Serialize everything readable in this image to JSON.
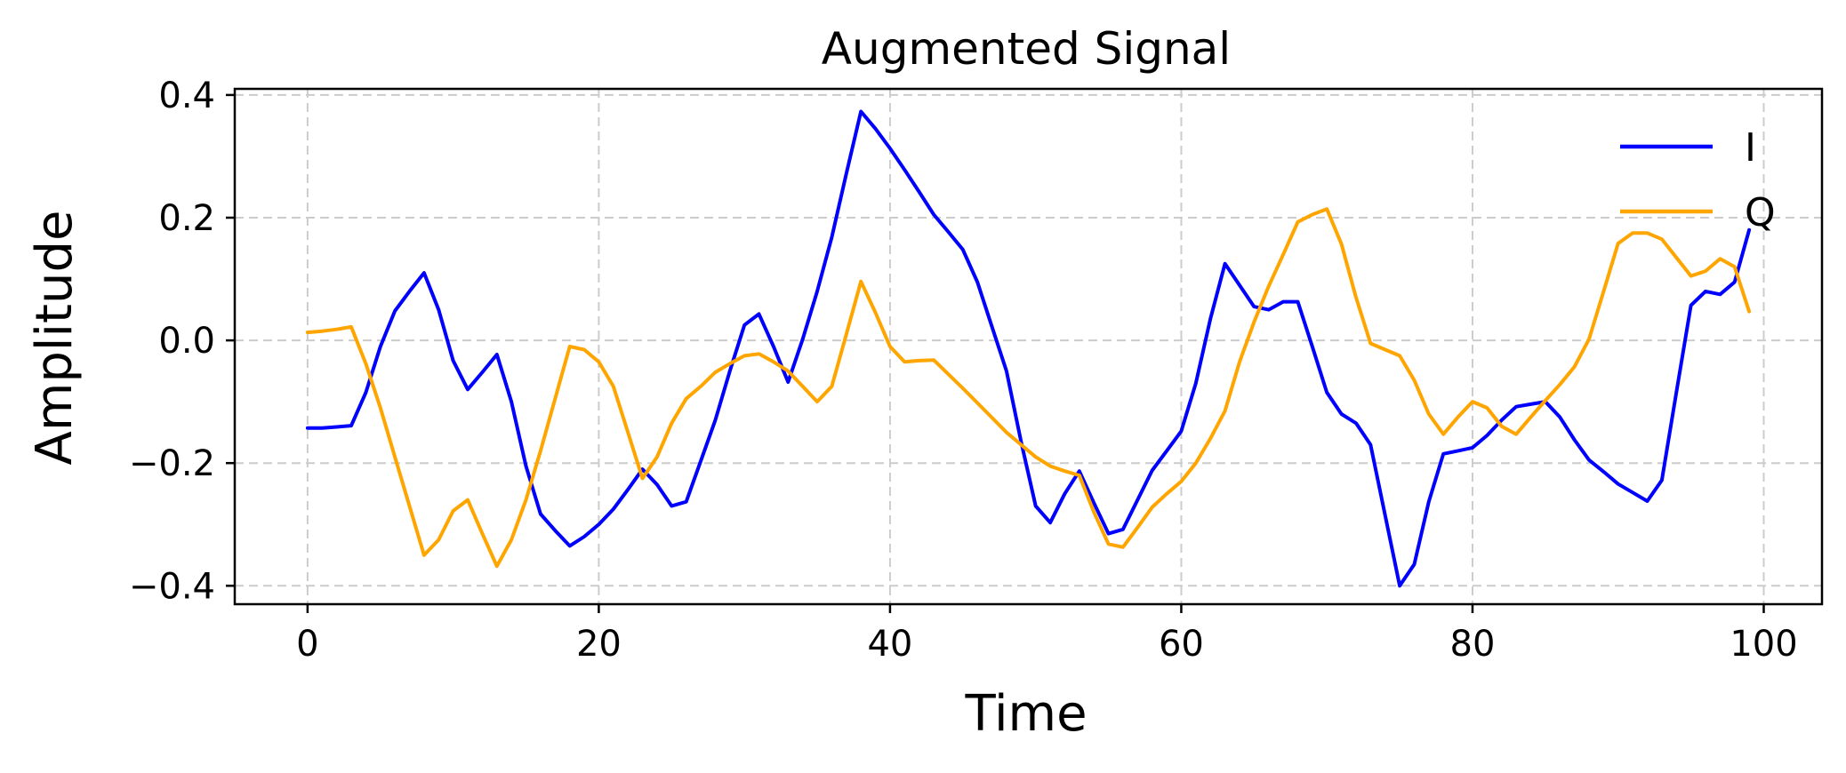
{
  "chart_data": {
    "type": "line",
    "title": "Augmented Signal",
    "xlabel": "Time",
    "ylabel": "Amplitude",
    "xlim": [
      -5,
      104
    ],
    "ylim": [
      -0.43,
      0.41
    ],
    "xticks": [
      0,
      20,
      40,
      60,
      80,
      100
    ],
    "xtick_labels": [
      "0",
      "20",
      "40",
      "60",
      "80",
      "100"
    ],
    "yticks": [
      0.4,
      0.2,
      0.0,
      -0.2,
      -0.4
    ],
    "ytick_labels": [
      "0.4",
      "0.2",
      "0.0",
      "−0.2",
      "−0.4"
    ],
    "grid": true,
    "legend": "top-right",
    "series": [
      {
        "name": "I",
        "color": "#0000ff",
        "x": [
          0,
          1,
          2,
          3,
          4,
          5,
          6,
          7,
          8,
          9,
          10,
          11,
          12,
          13,
          14,
          15,
          16,
          17,
          18,
          19,
          20,
          21,
          22,
          23,
          24,
          25,
          26,
          27,
          28,
          29,
          30,
          31,
          32,
          33,
          34,
          35,
          36,
          37,
          38,
          39,
          40,
          41,
          42,
          43,
          44,
          45,
          46,
          47,
          48,
          49,
          50,
          51,
          52,
          53,
          54,
          55,
          56,
          57,
          58,
          59,
          60,
          61,
          62,
          63,
          64,
          65,
          66,
          67,
          68,
          69,
          70,
          71,
          72,
          73,
          74,
          75,
          76,
          77,
          78,
          79,
          80,
          81,
          82,
          83,
          84,
          85,
          86,
          87,
          88,
          89,
          90,
          91,
          92,
          93,
          94,
          95,
          96,
          97,
          98,
          99
        ],
        "values": [
          -0.143,
          -0.143,
          -0.141,
          -0.139,
          -0.085,
          -0.01,
          0.048,
          0.08,
          0.11,
          0.05,
          -0.033,
          -0.08,
          -0.052,
          -0.023,
          -0.1,
          -0.205,
          -0.283,
          -0.31,
          -0.335,
          -0.32,
          -0.3,
          -0.275,
          -0.243,
          -0.21,
          -0.235,
          -0.27,
          -0.263,
          -0.197,
          -0.13,
          -0.05,
          0.025,
          0.043,
          -0.01,
          -0.068,
          0.002,
          0.08,
          0.168,
          0.272,
          0.373,
          0.345,
          0.313,
          0.278,
          0.242,
          0.205,
          0.177,
          0.148,
          0.095,
          0.022,
          -0.05,
          -0.165,
          -0.27,
          -0.297,
          -0.25,
          -0.213,
          -0.265,
          -0.315,
          -0.308,
          -0.26,
          -0.212,
          -0.18,
          -0.148,
          -0.07,
          0.035,
          0.125,
          0.09,
          0.055,
          0.05,
          0.063,
          0.063,
          -0.01,
          -0.085,
          -0.12,
          -0.135,
          -0.17,
          -0.285,
          -0.4,
          -0.365,
          -0.263,
          -0.185,
          -0.18,
          -0.175,
          -0.155,
          -0.13,
          -0.108,
          -0.104,
          -0.1,
          -0.125,
          -0.162,
          -0.195,
          -0.214,
          -0.234,
          -0.248,
          -0.262,
          -0.228,
          -0.085,
          0.057,
          0.08,
          0.075,
          0.095,
          0.18
        ]
      },
      {
        "name": "Q",
        "color": "#ffa500",
        "x": [
          0,
          1,
          2,
          3,
          4,
          5,
          6,
          7,
          8,
          9,
          10,
          11,
          12,
          13,
          14,
          15,
          16,
          17,
          18,
          19,
          20,
          21,
          22,
          23,
          24,
          25,
          26,
          27,
          28,
          29,
          30,
          31,
          32,
          33,
          34,
          35,
          36,
          37,
          38,
          39,
          40,
          41,
          42,
          43,
          44,
          45,
          46,
          47,
          48,
          49,
          50,
          51,
          52,
          53,
          54,
          55,
          56,
          57,
          58,
          59,
          60,
          61,
          62,
          63,
          64,
          65,
          66,
          67,
          68,
          69,
          70,
          71,
          72,
          73,
          74,
          75,
          76,
          77,
          78,
          79,
          80,
          81,
          82,
          83,
          84,
          85,
          86,
          87,
          88,
          89,
          90,
          91,
          92,
          93,
          94,
          95,
          96,
          97,
          98,
          99
        ],
        "values": [
          0.013,
          0.015,
          0.018,
          0.022,
          -0.038,
          -0.11,
          -0.19,
          -0.27,
          -0.35,
          -0.325,
          -0.278,
          -0.26,
          -0.315,
          -0.368,
          -0.325,
          -0.26,
          -0.18,
          -0.095,
          -0.01,
          -0.015,
          -0.035,
          -0.075,
          -0.15,
          -0.225,
          -0.19,
          -0.135,
          -0.095,
          -0.075,
          -0.052,
          -0.038,
          -0.025,
          -0.022,
          -0.035,
          -0.05,
          -0.075,
          -0.1,
          -0.075,
          0.01,
          0.096,
          0.045,
          -0.01,
          -0.035,
          -0.033,
          -0.032,
          -0.055,
          -0.078,
          -0.102,
          -0.126,
          -0.15,
          -0.17,
          -0.19,
          -0.205,
          -0.213,
          -0.22,
          -0.28,
          -0.332,
          -0.337,
          -0.305,
          -0.272,
          -0.25,
          -0.23,
          -0.2,
          -0.16,
          -0.115,
          -0.035,
          0.03,
          0.088,
          0.14,
          0.193,
          0.205,
          0.214,
          0.157,
          0.07,
          -0.005,
          -0.015,
          -0.025,
          -0.065,
          -0.12,
          -0.153,
          -0.125,
          -0.1,
          -0.11,
          -0.14,
          -0.153,
          -0.125,
          -0.098,
          -0.072,
          -0.043,
          0.002,
          0.08,
          0.158,
          0.175,
          0.175,
          0.165,
          0.135,
          0.105,
          0.113,
          0.133,
          0.12,
          0.047
        ]
      }
    ]
  }
}
